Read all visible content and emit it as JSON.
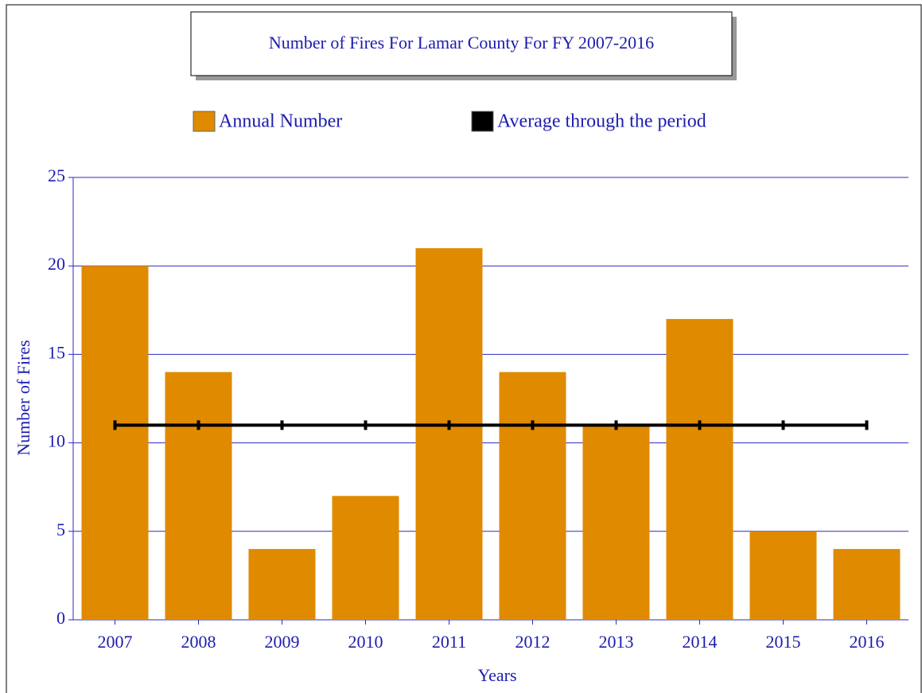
{
  "chart_data": {
    "type": "bar",
    "title": "Number of Fires For Lamar County For FY 2007-2016",
    "x_label": "Years",
    "y_label": "Number of Fires",
    "categories": [
      "2007",
      "2008",
      "2009",
      "2010",
      "2011",
      "2012",
      "2013",
      "2014",
      "2015",
      "2016"
    ],
    "series": [
      {
        "name": "Annual Number",
        "type": "bar",
        "color": "#e08a00",
        "values": [
          20,
          14,
          4,
          7,
          21,
          14,
          11,
          17,
          5,
          4
        ]
      },
      {
        "name": "Average through the period",
        "type": "line",
        "color": "#000000",
        "values": [
          11,
          11,
          11,
          11,
          11,
          11,
          11,
          11,
          11,
          11
        ]
      }
    ],
    "ylim": [
      0,
      25
    ],
    "yticks": [
      0,
      5,
      10,
      15,
      20,
      25
    ],
    "grid": true
  }
}
